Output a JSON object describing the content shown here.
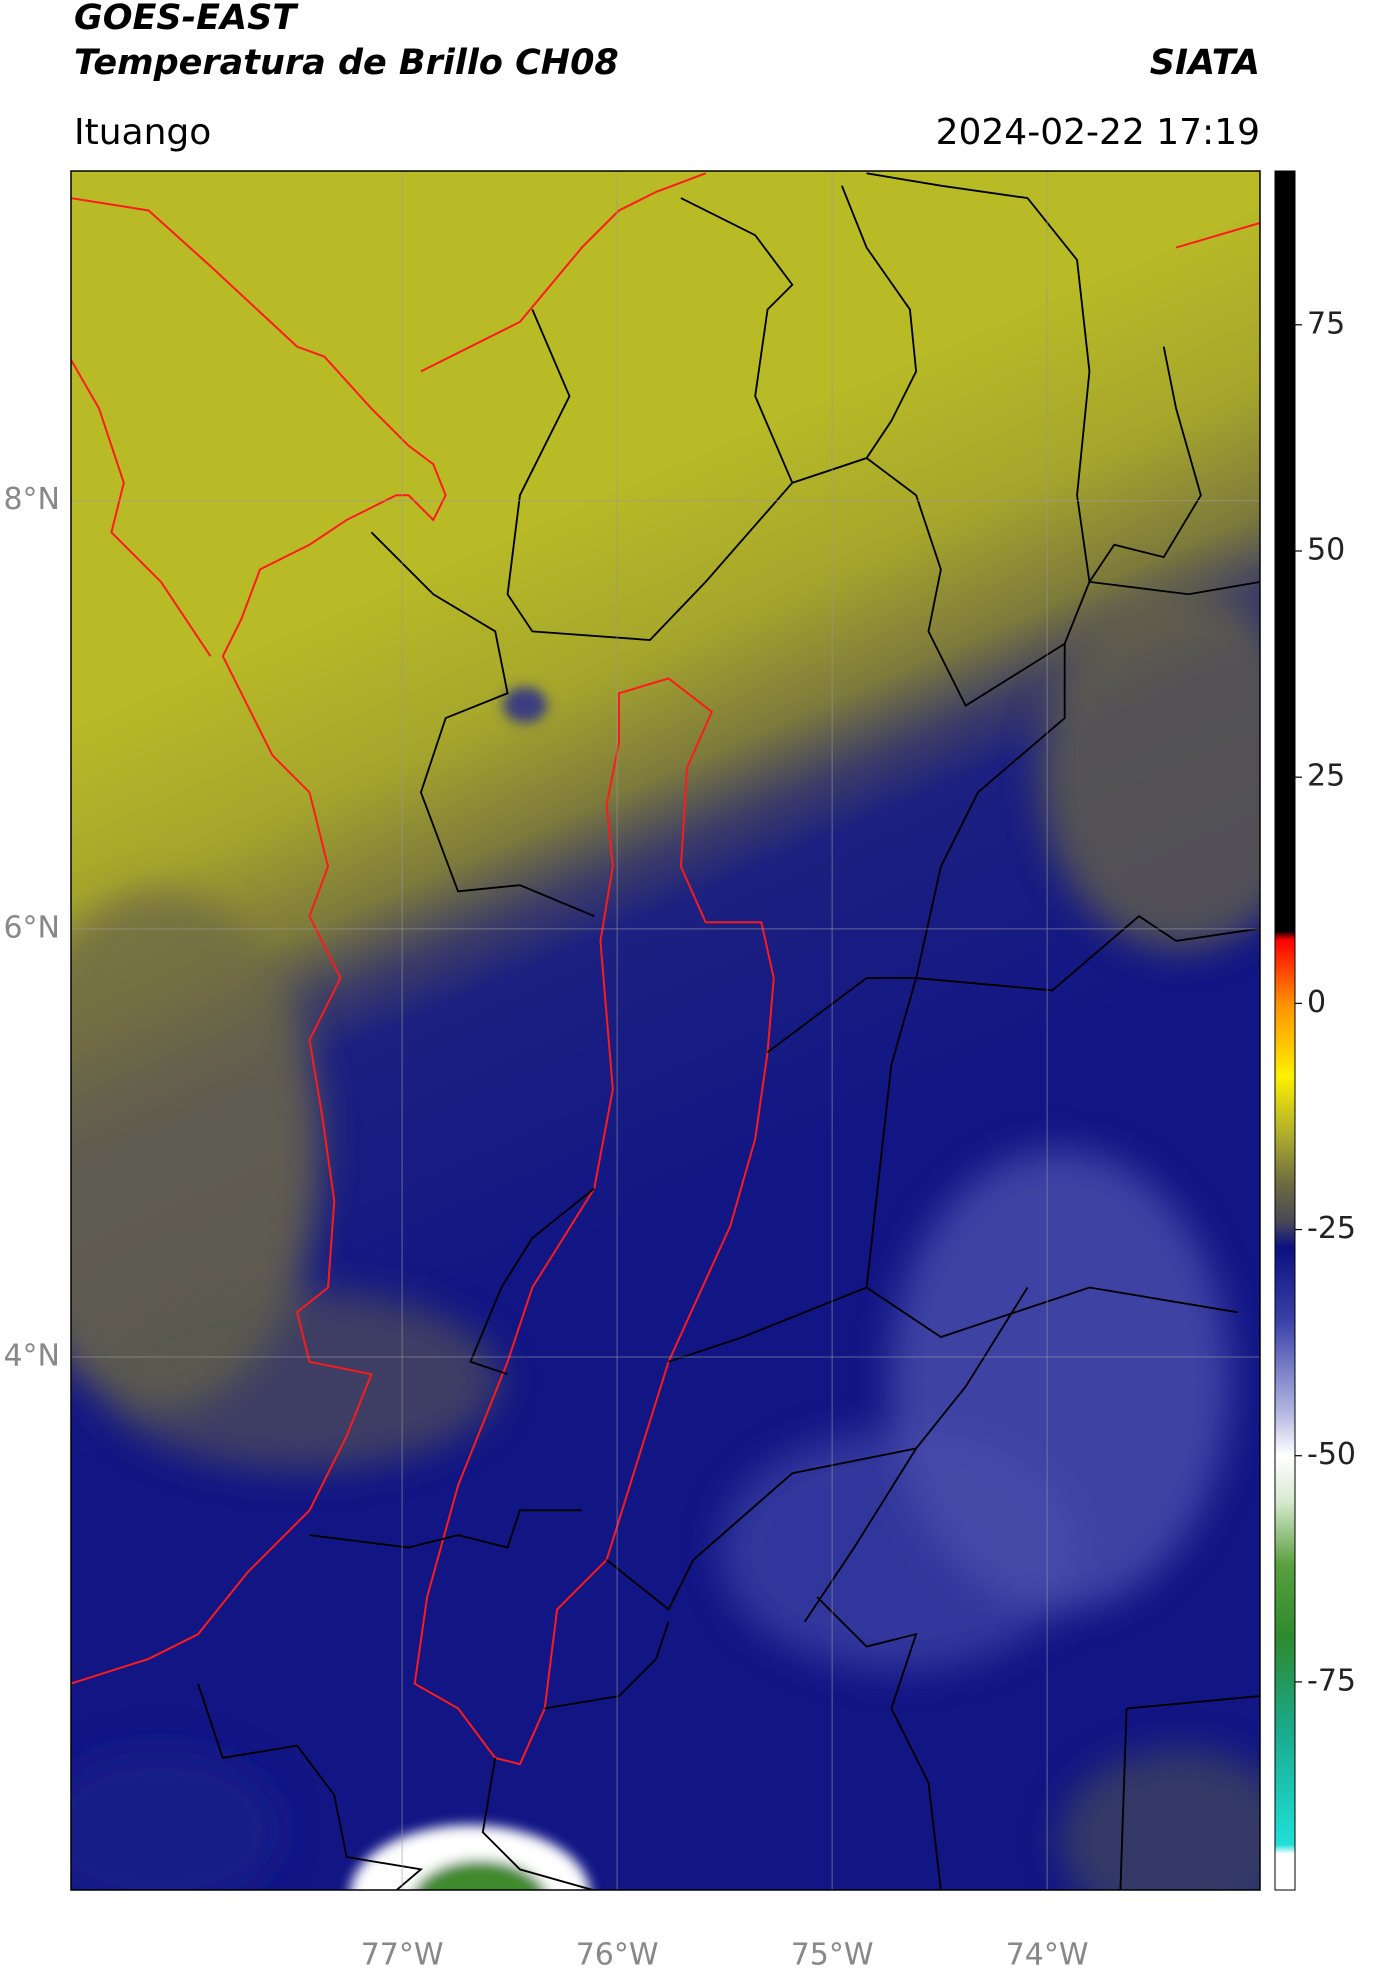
{
  "header": {
    "title": "GOES-EAST",
    "subtitle": "Temperatura de Brillo CH08",
    "organization": "SIATA",
    "location": "Ituango",
    "datetime": "2024-02-22 17:19"
  },
  "map": {
    "xlim": [
      -78.54,
      -73.01
    ],
    "ylim": [
      1.51,
      9.54
    ],
    "xticks": [
      {
        "value": -77,
        "label": "77°W"
      },
      {
        "value": -76,
        "label": "76°W"
      },
      {
        "value": -75,
        "label": "75°W"
      },
      {
        "value": -74,
        "label": "74°W"
      }
    ],
    "yticks": [
      {
        "value": 8,
        "label": "8°N"
      },
      {
        "value": 6,
        "label": "6°N"
      },
      {
        "value": 4,
        "label": "4°N"
      }
    ],
    "grid": true
  },
  "colorbar": {
    "lim": [
      -98,
      92
    ],
    "ticks": [
      75,
      50,
      25,
      0,
      -25,
      -50,
      -75
    ],
    "colormap": [
      {
        "value": -98,
        "color": "#ffffff"
      },
      {
        "value": -94,
        "color": "#ffffff"
      },
      {
        "value": -93,
        "color": "#20e0d8"
      },
      {
        "value": -80,
        "color": "#1aa88a"
      },
      {
        "value": -70,
        "color": "#2e8a2e"
      },
      {
        "value": -62,
        "color": "#5aa040"
      },
      {
        "value": -55,
        "color": "#d8ead0"
      },
      {
        "value": -50,
        "color": "#ffffff"
      },
      {
        "value": -45,
        "color": "#b0b4e0"
      },
      {
        "value": -35,
        "color": "#3a40a8"
      },
      {
        "value": -27,
        "color": "#0c1080"
      },
      {
        "value": -24,
        "color": "#4a4a55"
      },
      {
        "value": -20,
        "color": "#6c6a40"
      },
      {
        "value": -15,
        "color": "#a8a830"
      },
      {
        "value": -8,
        "color": "#fff000"
      },
      {
        "value": 0,
        "color": "#ff9000"
      },
      {
        "value": 7,
        "color": "#ff0000"
      },
      {
        "value": 8,
        "color": "#000000"
      },
      {
        "value": 92,
        "color": "#000000"
      }
    ]
  }
}
